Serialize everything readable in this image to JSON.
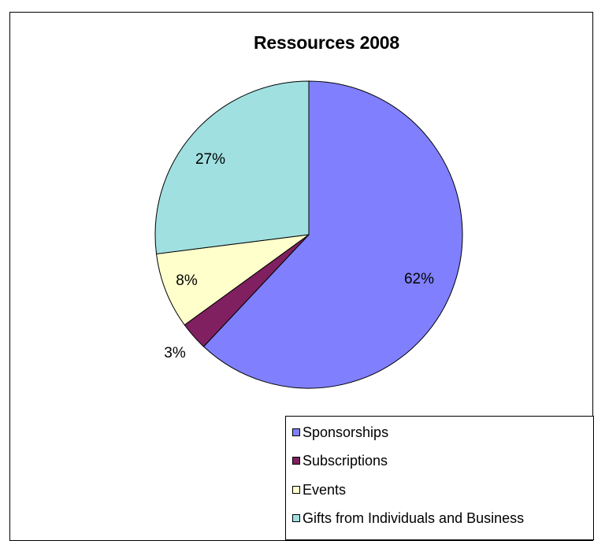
{
  "chart_data": {
    "type": "pie",
    "title": "Ressources 2008",
    "slices": [
      {
        "label": "Sponsorships",
        "value": 62,
        "display": "62%",
        "color": "#8080ff"
      },
      {
        "label": "Subscriptions",
        "value": 3,
        "display": "3%",
        "color": "#802060"
      },
      {
        "label": "Events",
        "value": 8,
        "display": "8%",
        "color": "#ffffcc"
      },
      {
        "label": "Gifts from Individuals and Business",
        "value": 27,
        "display": "27%",
        "color": "#a0e0e0"
      }
    ],
    "legend_position": "bottom-right"
  }
}
